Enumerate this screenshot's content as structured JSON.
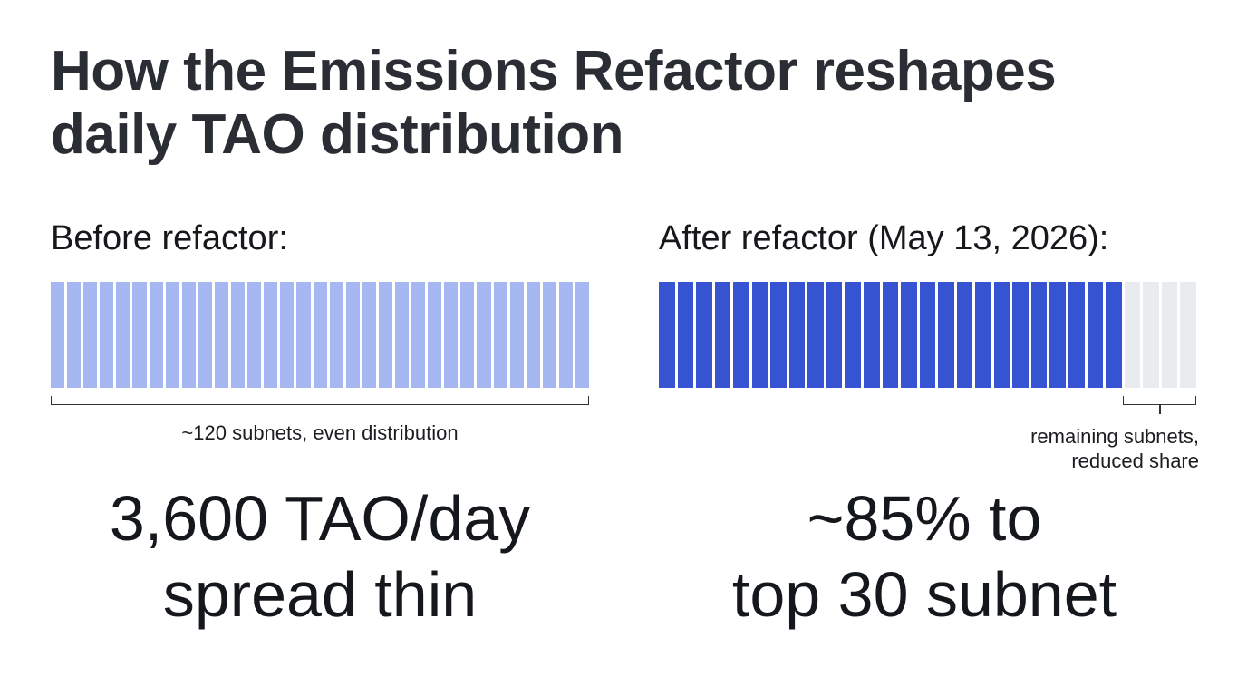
{
  "title": {
    "line1": "How the Emissions Refactor reshapes",
    "line2": "daily TAO distribution"
  },
  "before": {
    "label": "Before refactor:",
    "bar": {
      "segments": 33,
      "color": "#a7b7f2"
    },
    "bracket_note": "~120 subnets, even distribution",
    "headline_line1": "3,600 TAO/day",
    "headline_line2": "spread thin"
  },
  "after": {
    "label": "After refactor (May 13, 2026):",
    "bar": {
      "strong_segments": 25,
      "strong_color": "#3653d1",
      "faded_segments": 4,
      "faded_color": "#e9ecef"
    },
    "bracket_note_line1": "remaining subnets,",
    "bracket_note_line2": "reduced share",
    "headline_line1": "~85% to",
    "headline_line2": "top 30 subnet"
  }
}
